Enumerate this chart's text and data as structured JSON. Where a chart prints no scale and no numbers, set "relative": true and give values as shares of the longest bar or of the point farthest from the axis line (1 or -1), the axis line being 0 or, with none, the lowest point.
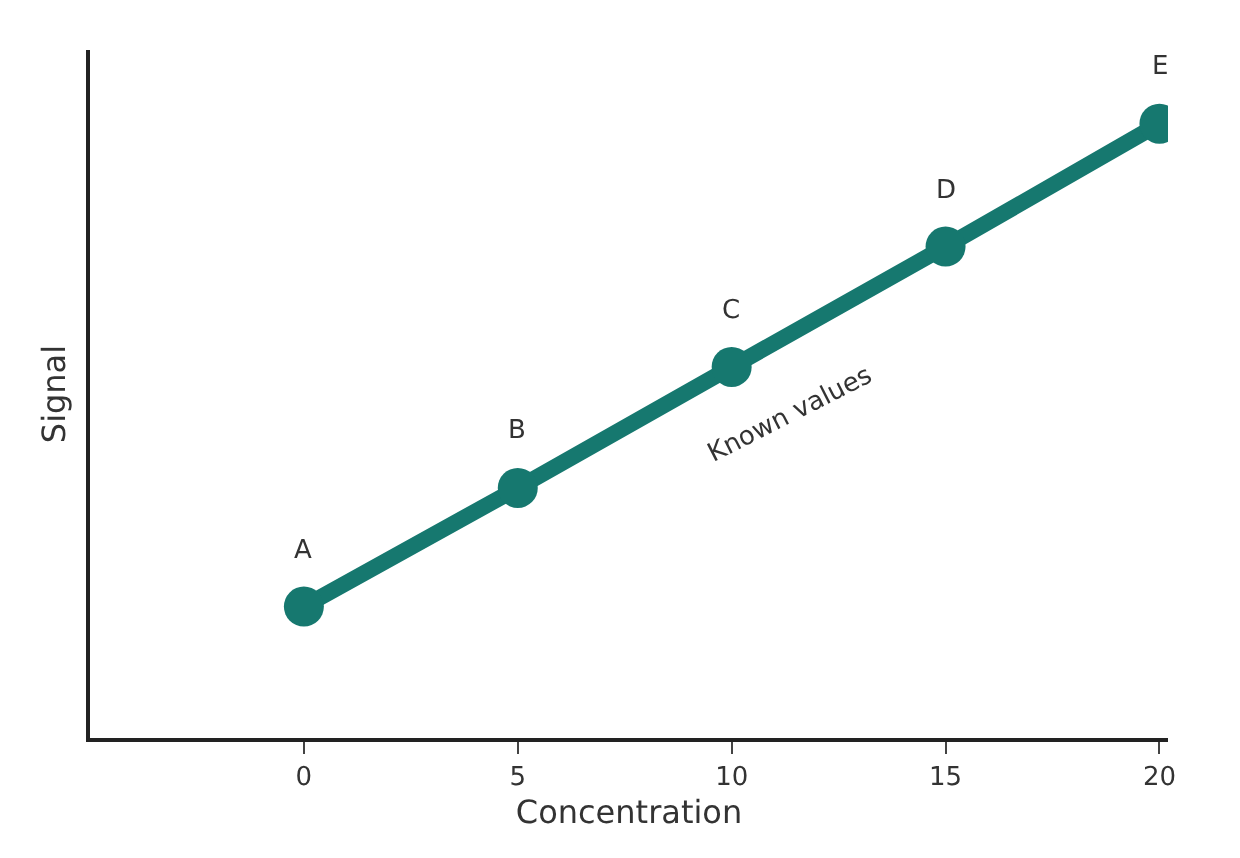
{
  "chart_data": {
    "type": "line",
    "xlabel": "Concentration",
    "ylabel": "Signal",
    "relative": true,
    "x": [
      0,
      5,
      10,
      15,
      20
    ],
    "series": [
      {
        "color": "#16786f",
        "values": [
          0.214,
          0.407,
          0.604,
          0.8,
          1
        ]
      }
    ],
    "xlim": [
      -5,
      20.2
    ],
    "xticks": [
      0,
      5,
      10,
      15,
      20
    ],
    "marker": "circle",
    "line_style": "solid",
    "annotations": [
      {
        "text": "A",
        "x": 0,
        "y": 0.214
      },
      {
        "text": "B",
        "x": 5,
        "y": 0.407
      },
      {
        "text": "C",
        "x": 10,
        "y": 0.604
      },
      {
        "text": "D",
        "x": 15,
        "y": 0.8
      },
      {
        "text": "E",
        "x": 20,
        "y": 1
      },
      "Known values"
    ]
  }
}
